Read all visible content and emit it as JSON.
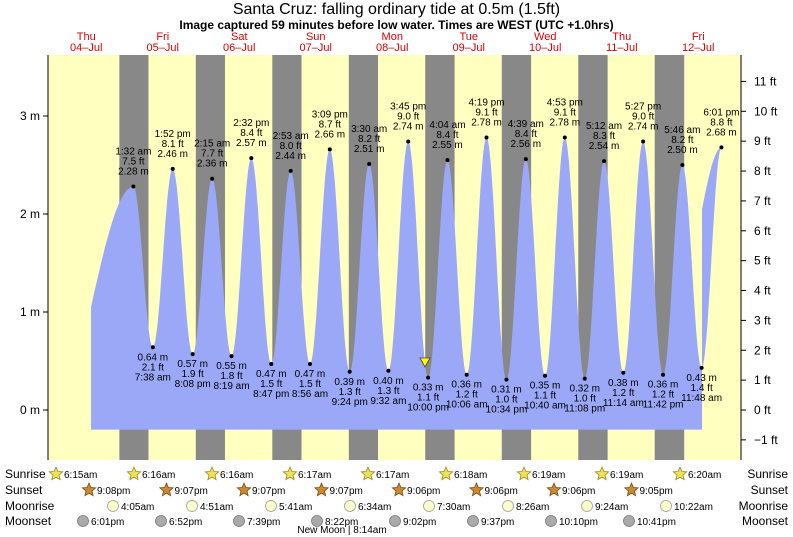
{
  "title": "Santa Cruz: falling  ordinary tide at 0.5m (1.5ft)",
  "subtitle": "Image captured 59 minutes before low water. Times are WEST (UTC +1.0hrs)",
  "colors": {
    "tide": "#9ba8f8",
    "day": "#ffffc0",
    "night": "#888888",
    "date": "#dd0000",
    "axis": "#000000"
  },
  "days": [
    {
      "dow": "Thu",
      "date": "04–Jul"
    },
    {
      "dow": "Fri",
      "date": "05–Jul"
    },
    {
      "dow": "Sat",
      "date": "06–Jul"
    },
    {
      "dow": "Sun",
      "date": "07–Jul"
    },
    {
      "dow": "Mon",
      "date": "08–Jul"
    },
    {
      "dow": "Tue",
      "date": "09–Jul"
    },
    {
      "dow": "Wed",
      "date": "10–Jul"
    },
    {
      "dow": "Thu",
      "date": "11–Jul"
    },
    {
      "dow": "Fri",
      "date": "12–Jul"
    }
  ],
  "chart_data": {
    "type": "area",
    "title": "Santa Cruz: falling  ordinary tide at 0.5m (1.5ft)",
    "ylabel_left": "m",
    "ylabel_right": "ft",
    "ylim_m": [
      -0.2,
      3.0
    ],
    "left_ticks": [
      "0 m",
      "1 m",
      "2 m",
      "3 m"
    ],
    "right_ticks": [
      "−1 ft",
      "0 ft",
      "1 ft",
      "2 ft",
      "3 ft",
      "4 ft",
      "5 ft",
      "6 ft",
      "7 ft",
      "8 ft",
      "9 ft",
      "10 ft",
      "11 ft"
    ],
    "current_level_m": 0.5,
    "tides": [
      {
        "type": "high",
        "time": "1:32 am",
        "ft": "7.5 ft",
        "m": 2.28,
        "m_label": "2.28 m"
      },
      {
        "type": "low",
        "time": "7:38 am",
        "ft": "2.1 ft",
        "m": 0.64,
        "m_label": "0.64 m"
      },
      {
        "type": "high",
        "time": "1:52 pm",
        "ft": "8.1 ft",
        "m": 2.46,
        "m_label": "2.46 m"
      },
      {
        "type": "low",
        "time": "8:08 pm",
        "ft": "1.9 ft",
        "m": 0.57,
        "m_label": "0.57 m"
      },
      {
        "type": "high",
        "time": "2:15 am",
        "ft": "7.7 ft",
        "m": 2.36,
        "m_label": "2.36 m"
      },
      {
        "type": "low",
        "time": "8:19 am",
        "ft": "1.8 ft",
        "m": 0.55,
        "m_label": "0.55 m"
      },
      {
        "type": "high",
        "time": "2:32 pm",
        "ft": "8.4 ft",
        "m": 2.57,
        "m_label": "2.57 m"
      },
      {
        "type": "low",
        "time": "8:47 pm",
        "ft": "1.5 ft",
        "m": 0.47,
        "m_label": "0.47 m"
      },
      {
        "type": "high",
        "time": "2:53 am",
        "ft": "8.0 ft",
        "m": 2.44,
        "m_label": "2.44 m"
      },
      {
        "type": "low",
        "time": "8:56 am",
        "ft": "1.5 ft",
        "m": 0.47,
        "m_label": "0.47 m"
      },
      {
        "type": "high",
        "time": "3:09 pm",
        "ft": "8.7 ft",
        "m": 2.66,
        "m_label": "2.66 m"
      },
      {
        "type": "low",
        "time": "9:24 pm",
        "ft": "1.3 ft",
        "m": 0.39,
        "m_label": "0.39 m"
      },
      {
        "type": "high",
        "time": "3:30 am",
        "ft": "8.2 ft",
        "m": 2.51,
        "m_label": "2.51 m"
      },
      {
        "type": "low",
        "time": "9:32 am",
        "ft": "1.3 ft",
        "m": 0.4,
        "m_label": "0.40 m"
      },
      {
        "type": "high",
        "time": "3:45 pm",
        "ft": "9.0 ft",
        "m": 2.74,
        "m_label": "2.74 m"
      },
      {
        "type": "low",
        "time": "10:00 pm",
        "ft": "1.1 ft",
        "m": 0.33,
        "m_label": "0.33 m"
      },
      {
        "type": "high",
        "time": "4:04 am",
        "ft": "8.4 ft",
        "m": 2.55,
        "m_label": "2.55 m"
      },
      {
        "type": "low",
        "time": "10:06 am",
        "ft": "1.2 ft",
        "m": 0.36,
        "m_label": "0.36 m"
      },
      {
        "type": "high",
        "time": "4:19 pm",
        "ft": "9.1 ft",
        "m": 2.78,
        "m_label": "2.78 m"
      },
      {
        "type": "low",
        "time": "10:34 pm",
        "ft": "1.0 ft",
        "m": 0.31,
        "m_label": "0.31 m"
      },
      {
        "type": "high",
        "time": "4:39 am",
        "ft": "8.4 ft",
        "m": 2.56,
        "m_label": "2.56 m"
      },
      {
        "type": "low",
        "time": "10:40 am",
        "ft": "1.1 ft",
        "m": 0.35,
        "m_label": "0.35 m"
      },
      {
        "type": "high",
        "time": "4:53 pm",
        "ft": "9.1 ft",
        "m": 2.78,
        "m_label": "2.78 m"
      },
      {
        "type": "low",
        "time": "11:08 pm",
        "ft": "1.0 ft",
        "m": 0.32,
        "m_label": "0.32 m"
      },
      {
        "type": "high",
        "time": "5:12 am",
        "ft": "8.3 ft",
        "m": 2.54,
        "m_label": "2.54 m"
      },
      {
        "type": "low",
        "time": "11:14 am",
        "ft": "1.2 ft",
        "m": 0.38,
        "m_label": "0.38 m"
      },
      {
        "type": "high",
        "time": "5:27 pm",
        "ft": "9.0 ft",
        "m": 2.74,
        "m_label": "2.74 m"
      },
      {
        "type": "low",
        "time": "11:42 pm",
        "ft": "1.2 ft",
        "m": 0.36,
        "m_label": "0.36 m"
      },
      {
        "type": "high",
        "time": "5:46 am",
        "ft": "8.2 ft",
        "m": 2.5,
        "m_label": "2.50 m"
      },
      {
        "type": "low",
        "time": "11:48 am",
        "ft": "1.4 ft",
        "m": 0.43,
        "m_label": "0.43 m"
      },
      {
        "type": "high",
        "time": "6:01 pm",
        "ft": "8.8 ft",
        "m": 2.68,
        "m_label": "2.68 m"
      }
    ]
  },
  "astro": {
    "row_labels": [
      "Sunrise",
      "Sunset",
      "Moonrise",
      "Moonset"
    ],
    "sunrise": [
      "6:15am",
      "6:16am",
      "6:16am",
      "6:17am",
      "6:17am",
      "6:18am",
      "6:19am",
      "6:19am",
      "6:20am"
    ],
    "sunset": [
      "9:08pm",
      "9:07pm",
      "9:07pm",
      "9:07pm",
      "9:06pm",
      "9:06pm",
      "9:06pm",
      "9:05pm"
    ],
    "moonrise": [
      "4:05am",
      "4:51am",
      "5:41am",
      "6:34am",
      "7:30am",
      "8:26am",
      "9:24am",
      "10:22am"
    ],
    "moonset": [
      "6:01pm",
      "6:52pm",
      "7:39pm",
      "8:22pm",
      "9:02pm",
      "9:37pm",
      "10:10pm",
      "10:41pm"
    ],
    "moon_phase": "New Moon | 8:14am"
  }
}
